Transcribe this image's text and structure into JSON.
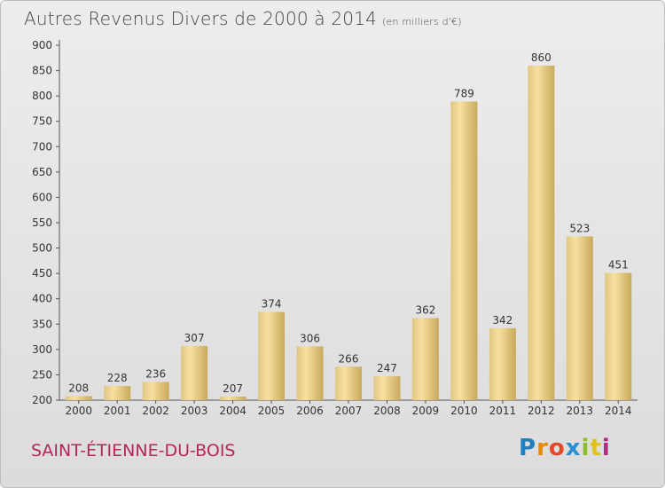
{
  "header": {
    "title": "Autres Revenus Divers de 2000 à 2014",
    "unit": "(en milliers d'€)"
  },
  "footer": {
    "town": "SAINT-ÉTIENNE-DU-BOIS",
    "logo": "Proxiti"
  },
  "colors": {
    "bar_light": "#f7e0a0",
    "bar_dark": "#c9a95c",
    "town": "#b5275c"
  },
  "chart_data": {
    "type": "bar",
    "title": "Autres Revenus Divers de 2000 à 2014",
    "subtitle": "(en milliers d'€)",
    "categories": [
      "2000",
      "2001",
      "2002",
      "2003",
      "2004",
      "2005",
      "2006",
      "2007",
      "2008",
      "2009",
      "2010",
      "2011",
      "2012",
      "2013",
      "2014"
    ],
    "values": [
      208,
      228,
      236,
      307,
      207,
      374,
      306,
      266,
      247,
      362,
      789,
      342,
      860,
      523,
      451
    ],
    "ylim": [
      200,
      900
    ],
    "yticks": [
      200,
      250,
      300,
      350,
      400,
      450,
      500,
      550,
      600,
      650,
      700,
      750,
      800,
      850,
      900
    ],
    "grid": false,
    "data_labels": true
  }
}
